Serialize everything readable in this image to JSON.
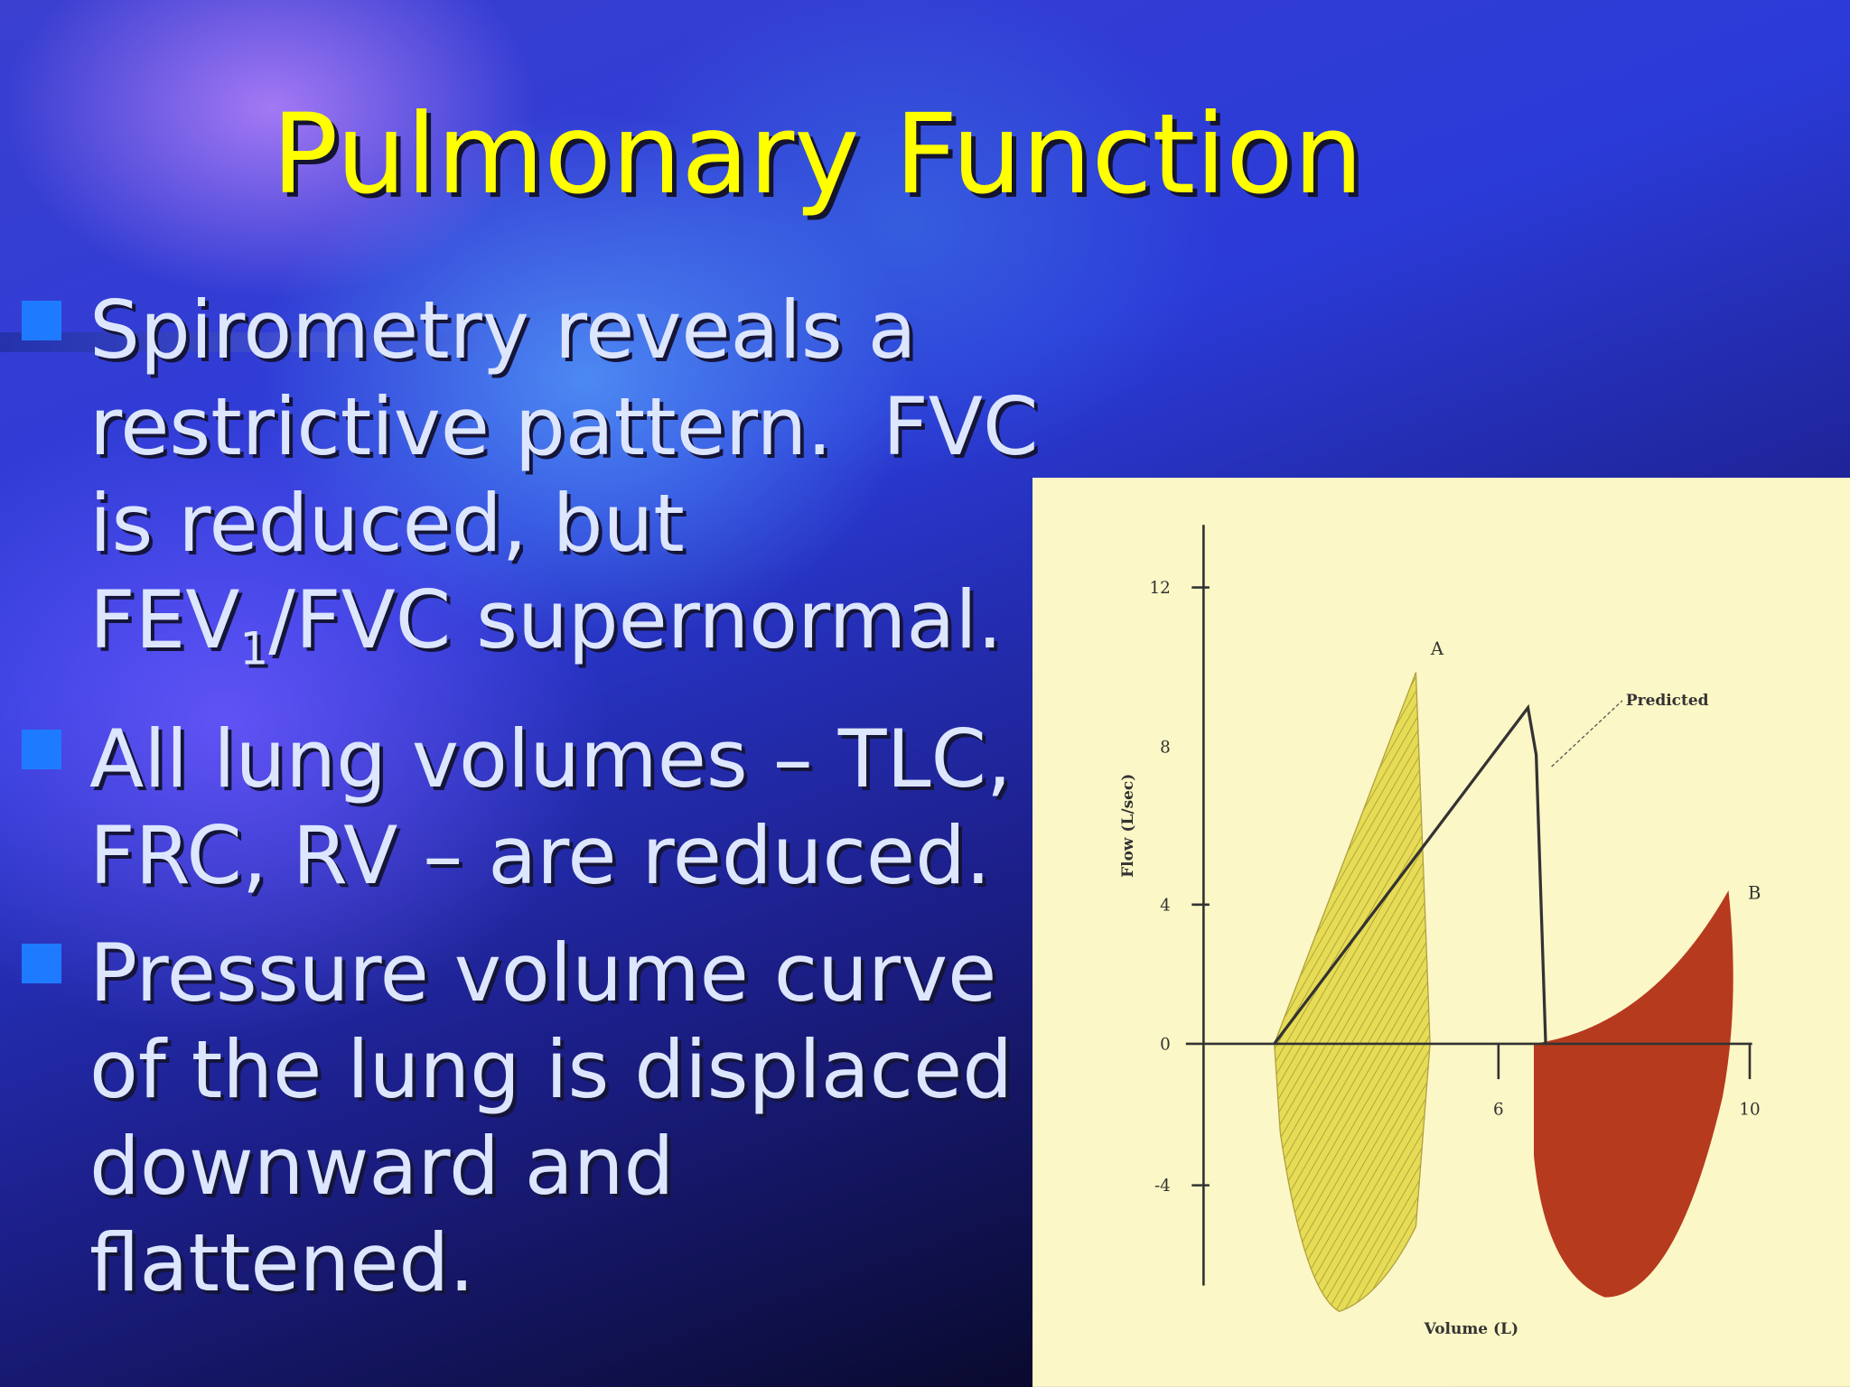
{
  "slide": {
    "title": "Pulmonary Function",
    "bullets": [
      {
        "parts": [
          "Spirometry reveals a restrictive pattern.  FVC is reduced, but FEV",
          "1",
          "/FVC supernormal."
        ]
      },
      {
        "parts": [
          "All lung volumes – TLC, FRC, RV – are reduced."
        ]
      },
      {
        "parts": [
          "Pressure volume curve of the lung is displaced downward and flattened."
        ]
      }
    ],
    "figure": {
      "y_axis_label": "Flow (L/sec)",
      "x_axis_label": "Volume (L)",
      "y_ticks": [
        "12",
        "8",
        "4",
        "0",
        "-4"
      ],
      "x_ticks": [
        "6",
        "10"
      ],
      "curve_labels": [
        "A",
        "Predicted",
        "B"
      ]
    }
  }
}
